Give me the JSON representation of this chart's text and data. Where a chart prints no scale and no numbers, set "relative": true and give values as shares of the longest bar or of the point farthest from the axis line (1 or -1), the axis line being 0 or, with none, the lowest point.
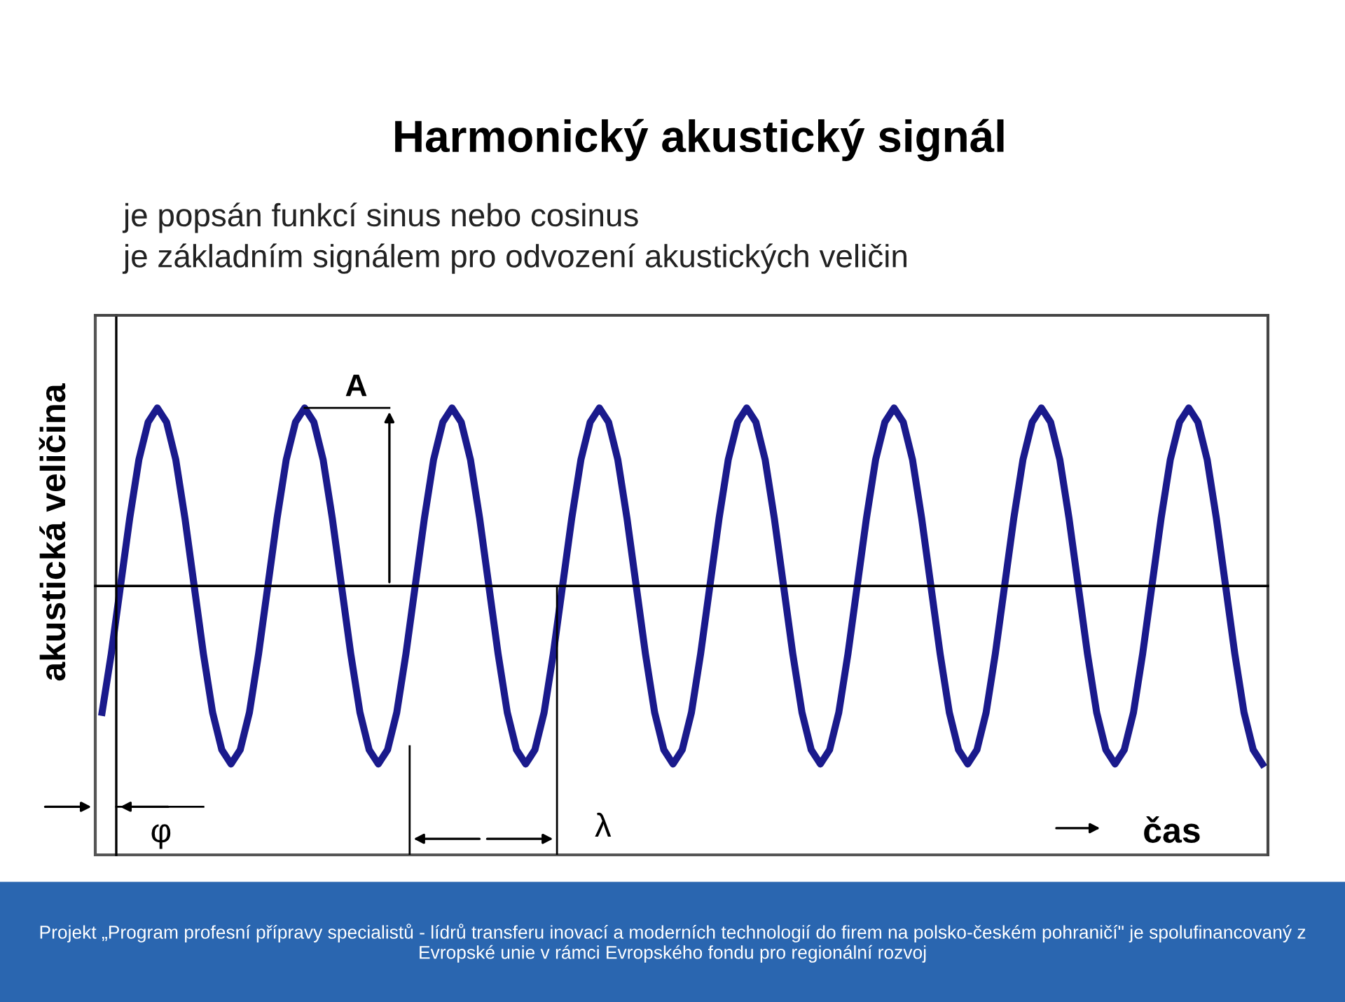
{
  "chart_data": {
    "type": "line",
    "relative": true,
    "title": "Harmonický akustický signál",
    "subtitle": "je popsán funkcí sinus nebo cosinus\nje základním signálem pro odvození akustických veličin",
    "ylabel": "akustická veličina",
    "categories": [
      null,
      null,
      null,
      null,
      null,
      null,
      null,
      null,
      null,
      null,
      null,
      null,
      null,
      null,
      null,
      null,
      null,
      null,
      null,
      null,
      null,
      null,
      null,
      null,
      null,
      null,
      null,
      null,
      null,
      null,
      null,
      null,
      null,
      null,
      null,
      null,
      null,
      null,
      null,
      null,
      null,
      null,
      null,
      null,
      null,
      null,
      null,
      null,
      null,
      null,
      null,
      null,
      null,
      null,
      null,
      null,
      null,
      null,
      null,
      null,
      null,
      null,
      null,
      null,
      null,
      null,
      null,
      null,
      null,
      null,
      null,
      null,
      null,
      null,
      null,
      null,
      null,
      null,
      null,
      null,
      null,
      null,
      null,
      null,
      null,
      null,
      null,
      null,
      null,
      null,
      null,
      null,
      null,
      null,
      null,
      null,
      null,
      null,
      null,
      null,
      null,
      null,
      null,
      null,
      null,
      null,
      null,
      null,
      null,
      null,
      null,
      null,
      null,
      null,
      null,
      null,
      null,
      null,
      null,
      null,
      null,
      null,
      null,
      null,
      null,
      null,
      null
    ],
    "series": [
      {
        "color": "#1a1a8c",
        "values": [
          -0.71,
          -0.38,
          0,
          0.38,
          0.71,
          0.92,
          1,
          0.92,
          0.71,
          0.38,
          0,
          -0.38,
          -0.71,
          -0.92,
          -1,
          -0.92,
          -0.71,
          -0.38,
          0,
          0.38,
          0.71,
          0.92,
          1,
          0.92,
          0.71,
          0.38,
          0,
          -0.38,
          -0.71,
          -0.92,
          -1,
          -0.92,
          -0.71,
          -0.38,
          0,
          0.38,
          0.71,
          0.92,
          1,
          0.92,
          0.71,
          0.38,
          0,
          -0.38,
          -0.71,
          -0.92,
          -1,
          -0.92,
          -0.71,
          -0.38,
          0,
          0.38,
          0.71,
          0.92,
          1,
          0.92,
          0.71,
          0.38,
          0,
          -0.38,
          -0.71,
          -0.92,
          -1,
          -0.92,
          -0.71,
          -0.38,
          0,
          0.38,
          0.71,
          0.92,
          1,
          0.92,
          0.71,
          0.38,
          0,
          -0.38,
          -0.71,
          -0.92,
          -1,
          -0.92,
          -0.71,
          -0.38,
          0,
          0.38,
          0.71,
          0.92,
          1,
          0.92,
          0.71,
          0.38,
          0,
          -0.38,
          -0.71,
          -0.92,
          -1,
          -0.92,
          -0.71,
          -0.38,
          0,
          0.38,
          0.71,
          0.92,
          1,
          0.92,
          0.71,
          0.38,
          0,
          -0.38,
          -0.71,
          -0.92,
          -1,
          -0.92,
          -0.71,
          -0.38,
          0,
          0.38,
          0.71,
          0.92,
          1,
          0.92,
          0.71,
          0.38,
          0,
          -0.38,
          -0.71,
          -0.92,
          -1
        ]
      }
    ],
    "annotations": [
      "A",
      "φ",
      "λ",
      "čas",
      "Projekt „Program profesní přípravy specialistů - lídrů transferu inovací a moderních technologií do firem na polsko-českém pohraničí\" je spolufinancovaný z Evropské unie v rámci Evropského fondu pro regionální rozvoj"
    ],
    "legend": false,
    "marker": "none",
    "line_style": "solid"
  }
}
